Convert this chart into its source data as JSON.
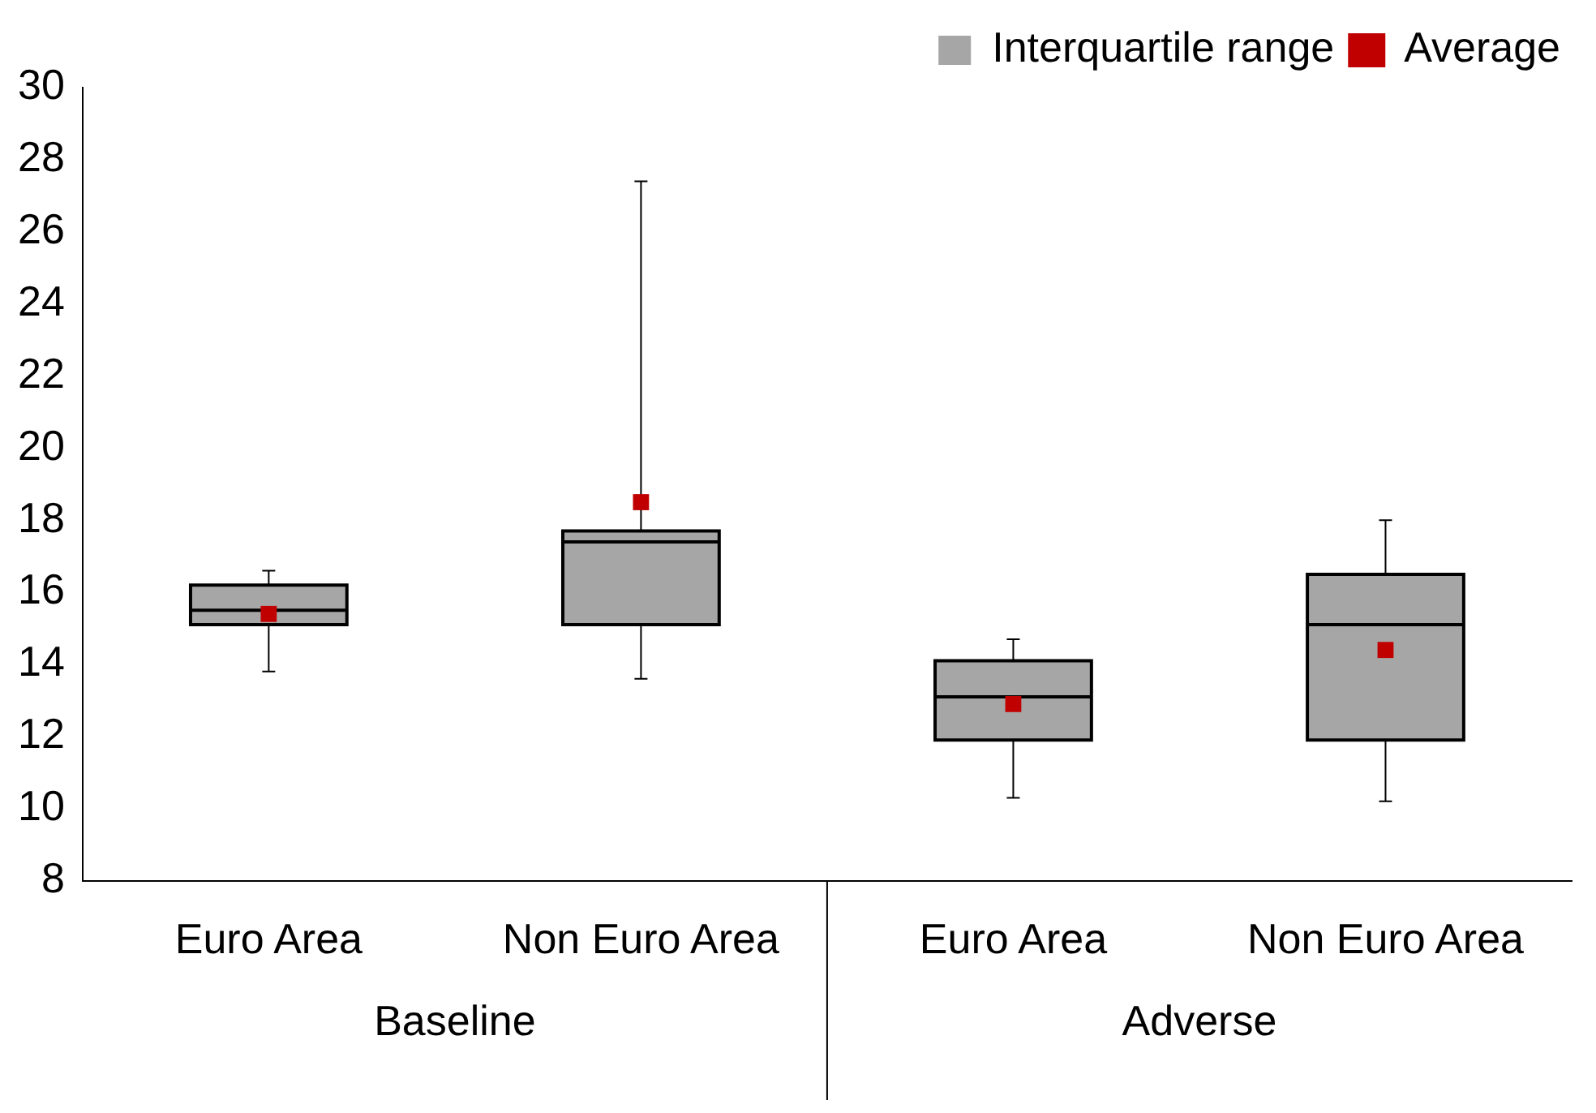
{
  "chart_data": {
    "type": "box",
    "categories": [
      "Euro Area",
      "Non Euro Area",
      "Euro Area",
      "Non Euro Area"
    ],
    "series": [
      {
        "type": "box",
        "name": "Interquartile range",
        "color": "#a6a6a6",
        "boxes": [
          {
            "low": 13.8,
            "q1": 15.1,
            "median": 15.5,
            "q3": 16.2,
            "high": 16.6
          },
          {
            "low": 13.6,
            "q1": 15.1,
            "median": 17.4,
            "q3": 17.7,
            "high": 27.4
          },
          {
            "low": 10.3,
            "q1": 11.9,
            "median": 13.1,
            "q3": 14.1,
            "high": 14.7
          },
          {
            "low": 10.2,
            "q1": 11.9,
            "median": 15.1,
            "q3": 16.5,
            "high": 18.0
          }
        ]
      },
      {
        "type": "scatter",
        "name": "Average",
        "color": "#c00000",
        "values": [
          15.4,
          18.5,
          12.9,
          14.4
        ]
      }
    ],
    "annotations": [
      "Baseline",
      "Adverse"
    ],
    "ylim": [
      8,
      30
    ],
    "yticks": [
      8,
      10,
      12,
      14,
      16,
      18,
      20,
      22,
      24,
      26,
      28,
      30
    ],
    "grid": false,
    "legend": "top right"
  }
}
